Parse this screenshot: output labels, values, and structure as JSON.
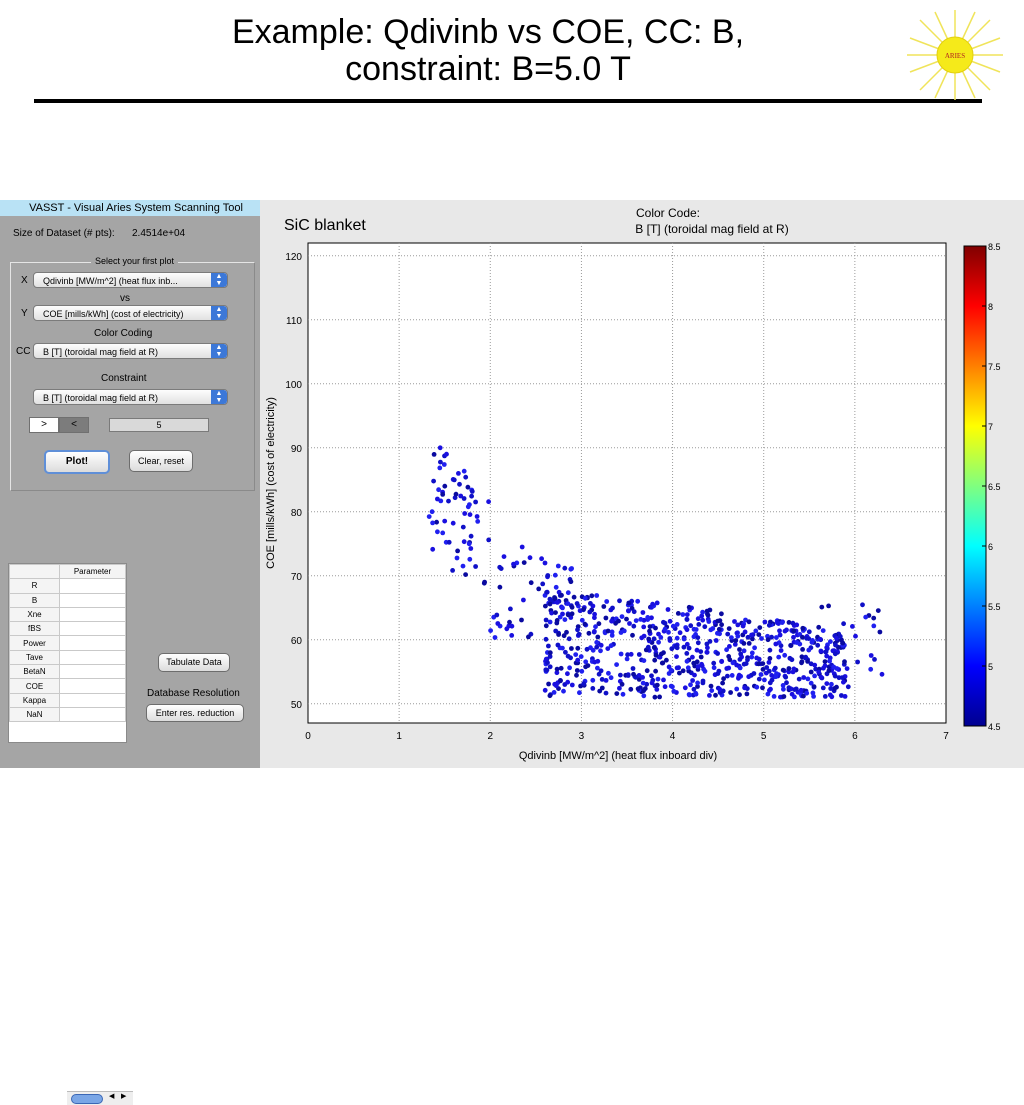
{
  "slide": {
    "title_line1": "Example: Qdivinb vs COE, CC: B,",
    "title_line2": "constraint: B=5.0 T",
    "logo_text": "ARIES"
  },
  "app": {
    "title": "VASST - Visual Aries System Scanning Tool",
    "dataset_label": "Size of Dataset (# pts):",
    "dataset_value": "2.4514e+04",
    "panel_title": "Select your first plot",
    "x_label": "X",
    "x_value": "Qdivinb [MW/m^2] (heat flux inb...",
    "vs_label": "vs",
    "y_label": "Y",
    "y_value": "COE [mills/kWh] (cost of electricity)",
    "color_coding_label": "Color Coding",
    "cc_label": "CC",
    "cc_value": "B [T] (toroidal mag field at R)",
    "constraint_label": "Constraint",
    "constraint_value": "B [T] (toroidal mag field at R)",
    "gt_label": ">",
    "lt_label": "<",
    "constraint_number": "5",
    "plot_button": "Plot!",
    "clear_button": "Clear, reset",
    "table_header": "Parameter",
    "table_rows": [
      "R",
      "B",
      "Xne",
      "fBS",
      "Power",
      "Tave",
      "BetaN",
      "COE",
      "Kappa",
      "NaN"
    ],
    "tabulate_button": "Tabulate Data",
    "db_resolution_label": "Database Resolution",
    "res_button": "Enter res. reduction"
  },
  "chart_data": {
    "type": "scatter",
    "annotation": "SiC blanket",
    "color_code_title": "Color Code:",
    "color_code_subtitle": "B [T] (toroidal mag field at R)",
    "xlabel": "Qdivinb [MW/m^2] (heat flux inboard div)",
    "ylabel": "COE [mills/kWh] (cost of electricity)",
    "xlim": [
      0,
      7
    ],
    "ylim": [
      47,
      122
    ],
    "xticks": [
      0,
      1,
      2,
      3,
      4,
      5,
      6,
      7
    ],
    "yticks": [
      50,
      60,
      70,
      80,
      90,
      100,
      110,
      120
    ],
    "grid": true,
    "colorbar": {
      "range": [
        4.5,
        8.5
      ],
      "ticks": [
        "8.5",
        "8",
        "7.5",
        "7",
        "6.5",
        "6",
        "5.5",
        "5",
        "4.5"
      ],
      "colormap": "jet"
    },
    "marker_color": "#1a10e0",
    "clusters": [
      {
        "x": [
          1.3,
          2.0
        ],
        "y": [
          68,
          90
        ],
        "count": 60
      },
      {
        "x": [
          2.0,
          2.9
        ],
        "y": [
          60,
          74
        ],
        "count": 45
      },
      {
        "x": [
          2.6,
          5.9
        ],
        "y": [
          51,
          68
        ],
        "count": 700
      },
      {
        "x": [
          5.6,
          6.3
        ],
        "y": [
          52,
          66
        ],
        "count": 30
      }
    ],
    "highlight_points": [
      [
        1.45,
        90
      ],
      [
        1.52,
        89
      ],
      [
        1.65,
        86
      ],
      [
        1.42,
        82
      ],
      [
        2.15,
        73
      ],
      [
        2.35,
        74.5
      ],
      [
        2.6,
        72
      ]
    ]
  }
}
